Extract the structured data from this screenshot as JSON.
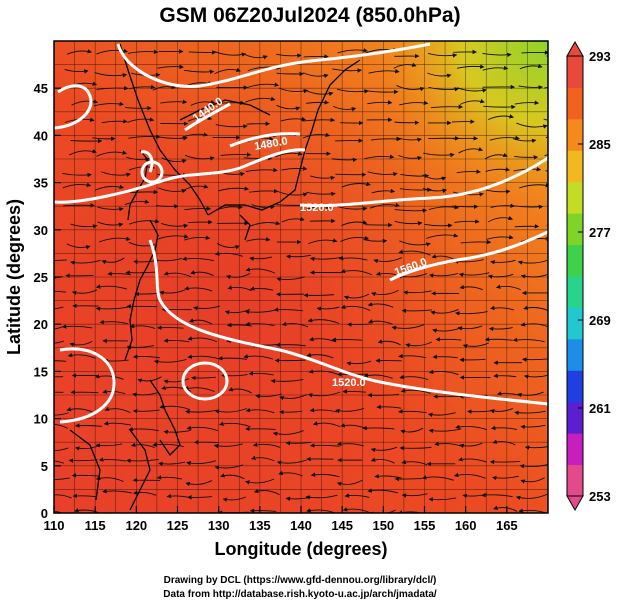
{
  "title": "GSM 06Z20Jul2024 (850.0hPa)",
  "xlabel": "Longitude (degrees)",
  "ylabel": "Latitude  (degrees)",
  "x_ticks": [
    "110",
    "115",
    "120",
    "125",
    "130",
    "135",
    "140",
    "145",
    "150",
    "155",
    "160",
    "165"
  ],
  "y_ticks": [
    "0",
    "5",
    "10",
    "15",
    "20",
    "25",
    "30",
    "35",
    "40",
    "45"
  ],
  "colorbar": {
    "ticks": [
      "293",
      "285",
      "277",
      "269",
      "261",
      "253"
    ],
    "min": 253,
    "max": 293,
    "colors": [
      "#e34a8a",
      "#c71fbd",
      "#5b1fd0",
      "#1f3fe0",
      "#1c8ee8",
      "#22c7d0",
      "#28d48c",
      "#3ed24a",
      "#7fd42a",
      "#c4dc24",
      "#f2b820",
      "#f58a1c",
      "#f0621e",
      "#e74a3a"
    ]
  },
  "contour_labels": [
    "1440.0",
    "1480.0",
    "1520.0",
    "1520.0",
    "1560.0"
  ],
  "credits": {
    "line1": "Drawing by DCL (https://www.gfd-dennou.org/library/dcl/)",
    "line2": "Data from http://database.rish.kyoto-u.ac.jp/arch/jmadata/"
  },
  "chart_data": {
    "type": "heatmap",
    "title": "GSM 06Z20Jul2024 (850.0hPa)",
    "xlabel": "Longitude (degrees)",
    "ylabel": "Latitude  (degrees)",
    "xlim": [
      110,
      170
    ],
    "ylim": [
      0,
      50
    ],
    "x_ticks": [
      110,
      115,
      120,
      125,
      130,
      135,
      140,
      145,
      150,
      155,
      160,
      165
    ],
    "y_ticks": [
      0,
      5,
      10,
      15,
      20,
      25,
      30,
      35,
      40,
      45
    ],
    "colorbar_range": [
      253,
      293
    ],
    "colorbar_ticks": [
      293,
      285,
      277,
      269,
      261,
      253
    ],
    "contour_labels": [
      1440.0,
      1480.0,
      1520.0,
      1520.0,
      1560.0
    ],
    "grid": true
  }
}
